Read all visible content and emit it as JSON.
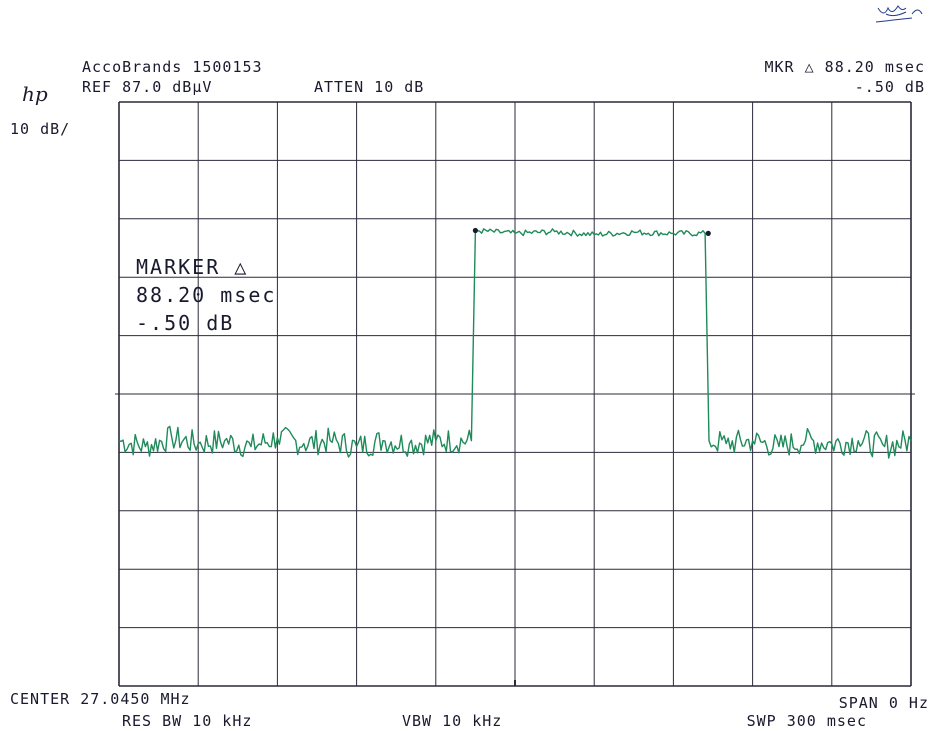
{
  "header": {
    "title": "AccoBrands 1500153",
    "ref_level": "REF 87.0 dBµV",
    "attenuation": "ATTEN 10 dB",
    "scale": "10 dB/",
    "logo": "hp",
    "marker_readout": "MKR △ 88.20 msec",
    "marker_level": "-.50 dB"
  },
  "marker_box": {
    "label": "MARKER △",
    "time": "88.20 msec",
    "level": "-.50 dB"
  },
  "footer": {
    "center": "CENTER 27.0450 MHz",
    "res_bw": "RES BW 10 kHz",
    "vbw": "VBW 10 kHz",
    "span": "SPAN 0 Hz",
    "sweep": "SWP 300 msec"
  },
  "annotation_handwritten": "signature / date stamp",
  "colors": {
    "trace": "#1f8a5a",
    "grid": "#2a2a3a",
    "text": "#1a1a2e"
  },
  "chart_data": {
    "type": "line",
    "xlabel": "",
    "ylabel": "",
    "xlim": [
      0,
      300
    ],
    "ylim": [
      -13,
      87
    ],
    "x_unit": "msec",
    "y_unit": "dBµV",
    "divisions": {
      "x": 10,
      "y": 10
    },
    "grid": true,
    "series": [
      {
        "x": [
          0,
          10,
          20,
          30,
          40,
          50,
          60,
          70,
          80,
          90,
          100,
          110,
          120,
          133.5,
          135,
          150,
          165,
          180,
          195,
          210,
          222,
          223.5,
          230,
          240,
          250,
          260,
          270,
          280,
          290,
          300
        ],
        "y": [
          29,
          28,
          29.5,
          28.5,
          29,
          28,
          29.5,
          28.5,
          29,
          28,
          29,
          28.5,
          29,
          29,
          65,
          64.5,
          64.8,
          64.3,
          64.7,
          64.5,
          64.5,
          29,
          28.5,
          29,
          28,
          29,
          28.5,
          29,
          28,
          29
        ]
      }
    ],
    "markers": [
      {
        "x": 135,
        "y": 65
      },
      {
        "x": 223.2,
        "y": 64.5
      }
    ]
  }
}
